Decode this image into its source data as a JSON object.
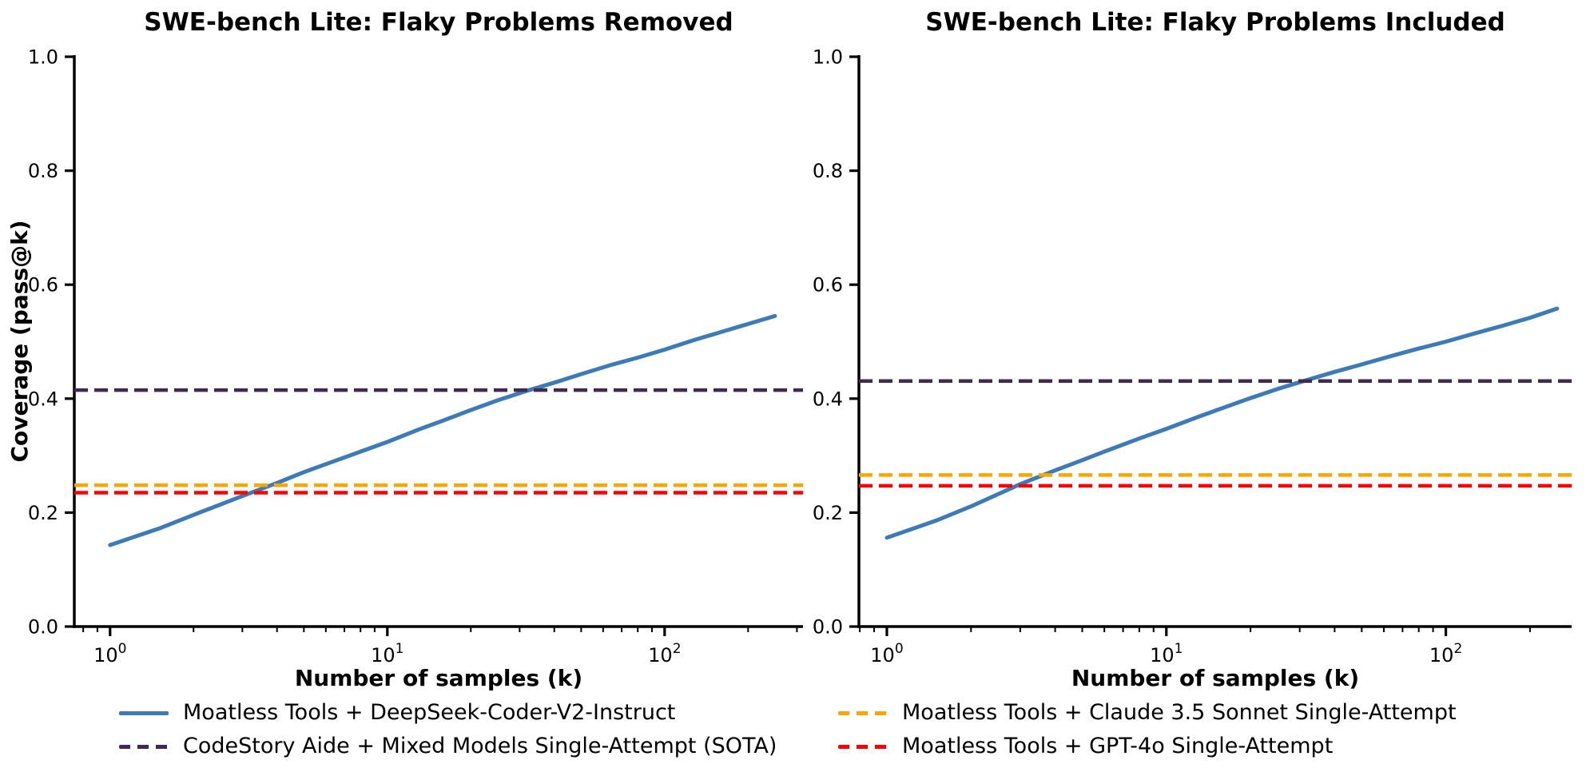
{
  "figure": {
    "background": "#ffffff"
  },
  "colors": {
    "blue": "#3d7ab8",
    "purple": "#402b4e",
    "orange": "#ffa500",
    "red": "#ff0000",
    "axis": "#000000",
    "text": "#000000"
  },
  "legend": {
    "items": [
      {
        "label": "Moatless Tools + DeepSeek-Coder-V2-Instruct",
        "color_key": "blue",
        "style": "solid",
        "column": 0,
        "row": 0
      },
      {
        "label": "CodeStory Aide + Mixed Models Single-Attempt (SOTA)",
        "color_key": "purple",
        "style": "dashed",
        "column": 0,
        "row": 1
      },
      {
        "label": "Moatless Tools + Claude 3.5 Sonnet Single-Attempt",
        "color_key": "orange",
        "style": "dashed",
        "column": 1,
        "row": 0
      },
      {
        "label": "Moatless Tools + GPT-4o Single-Attempt",
        "color_key": "red",
        "style": "dashed",
        "column": 1,
        "row": 1
      }
    ]
  },
  "chart_data": [
    {
      "type": "line",
      "title": "SWE-bench Lite: Flaky Problems Removed",
      "xlabel": "Number of samples (k)",
      "ylabel": "Coverage (pass@k)",
      "x_scale": "log",
      "xlim": [
        0.74,
        315
      ],
      "ylim": [
        0,
        1
      ],
      "grid": false,
      "x_ticks": [
        {
          "value": 1,
          "base": "10",
          "exp": "0"
        },
        {
          "value": 10,
          "base": "10",
          "exp": "1"
        },
        {
          "value": 100,
          "base": "10",
          "exp": "2"
        }
      ],
      "y_ticks": [
        {
          "value": 0.0,
          "label": "0.0"
        },
        {
          "value": 0.2,
          "label": "0.2"
        },
        {
          "value": 0.4,
          "label": "0.4"
        },
        {
          "value": 0.6,
          "label": "0.6"
        },
        {
          "value": 0.8,
          "label": "0.8"
        },
        {
          "value": 1.0,
          "label": "1.0"
        }
      ],
      "series": [
        {
          "name": "Moatless Tools + DeepSeek-Coder-V2-Instruct",
          "type": "curve",
          "style": "solid",
          "color_key": "blue",
          "points": [
            [
              1,
              0.143
            ],
            [
              1.5,
              0.172
            ],
            [
              2,
              0.196
            ],
            [
              3,
              0.229
            ],
            [
              4,
              0.252
            ],
            [
              5,
              0.271
            ],
            [
              6,
              0.285
            ],
            [
              8,
              0.307
            ],
            [
              10,
              0.324
            ],
            [
              13,
              0.346
            ],
            [
              16,
              0.362
            ],
            [
              20,
              0.38
            ],
            [
              25,
              0.397
            ],
            [
              32,
              0.414
            ],
            [
              40,
              0.428
            ],
            [
              50,
              0.443
            ],
            [
              64,
              0.459
            ],
            [
              80,
              0.472
            ],
            [
              100,
              0.486
            ],
            [
              128,
              0.503
            ],
            [
              160,
              0.517
            ],
            [
              200,
              0.531
            ],
            [
              250,
              0.545
            ]
          ]
        },
        {
          "name": "CodeStory Aide + Mixed Models Single-Attempt (SOTA)",
          "type": "hline",
          "style": "dashed",
          "color_key": "purple",
          "value": 0.415
        },
        {
          "name": "Moatless Tools + Claude 3.5 Sonnet Single-Attempt",
          "type": "hline",
          "style": "dashed",
          "color_key": "orange",
          "value": 0.248
        },
        {
          "name": "Moatless Tools + GPT-4o Single-Attempt",
          "type": "hline",
          "style": "dashed",
          "color_key": "red",
          "value": 0.235
        }
      ]
    },
    {
      "type": "line",
      "title": "SWE-bench Lite: Flaky Problems Included",
      "xlabel": "Number of samples (k)",
      "ylabel": "",
      "x_scale": "log",
      "xlim": [
        0.79,
        282
      ],
      "ylim": [
        0,
        1
      ],
      "grid": false,
      "x_ticks": [
        {
          "value": 1,
          "base": "10",
          "exp": "0"
        },
        {
          "value": 10,
          "base": "10",
          "exp": "1"
        },
        {
          "value": 100,
          "base": "10",
          "exp": "2"
        }
      ],
      "y_ticks": [
        {
          "value": 0.0,
          "label": "0.0"
        },
        {
          "value": 0.2,
          "label": "0.2"
        },
        {
          "value": 0.4,
          "label": "0.4"
        },
        {
          "value": 0.6,
          "label": "0.6"
        },
        {
          "value": 0.8,
          "label": "0.8"
        },
        {
          "value": 1.0,
          "label": "1.0"
        }
      ],
      "series": [
        {
          "name": "Moatless Tools + DeepSeek-Coder-V2-Instruct",
          "type": "curve",
          "style": "solid",
          "color_key": "blue",
          "points": [
            [
              1,
              0.156
            ],
            [
              1.5,
              0.186
            ],
            [
              2,
              0.211
            ],
            [
              3,
              0.25
            ],
            [
              4,
              0.274
            ],
            [
              5,
              0.292
            ],
            [
              6,
              0.307
            ],
            [
              8,
              0.33
            ],
            [
              10,
              0.347
            ],
            [
              13,
              0.368
            ],
            [
              16,
              0.384
            ],
            [
              20,
              0.401
            ],
            [
              25,
              0.417
            ],
            [
              32,
              0.433
            ],
            [
              40,
              0.447
            ],
            [
              50,
              0.46
            ],
            [
              64,
              0.475
            ],
            [
              80,
              0.488
            ],
            [
              100,
              0.5
            ],
            [
              128,
              0.515
            ],
            [
              160,
              0.528
            ],
            [
              200,
              0.542
            ],
            [
              250,
              0.558
            ]
          ]
        },
        {
          "name": "CodeStory Aide + Mixed Models Single-Attempt (SOTA)",
          "type": "hline",
          "style": "dashed",
          "color_key": "purple",
          "value": 0.431
        },
        {
          "name": "Moatless Tools + Claude 3.5 Sonnet Single-Attempt",
          "type": "hline",
          "style": "dashed",
          "color_key": "orange",
          "value": 0.266
        },
        {
          "name": "Moatless Tools + GPT-4o Single-Attempt",
          "type": "hline",
          "style": "dashed",
          "color_key": "red",
          "value": 0.247
        }
      ]
    }
  ]
}
